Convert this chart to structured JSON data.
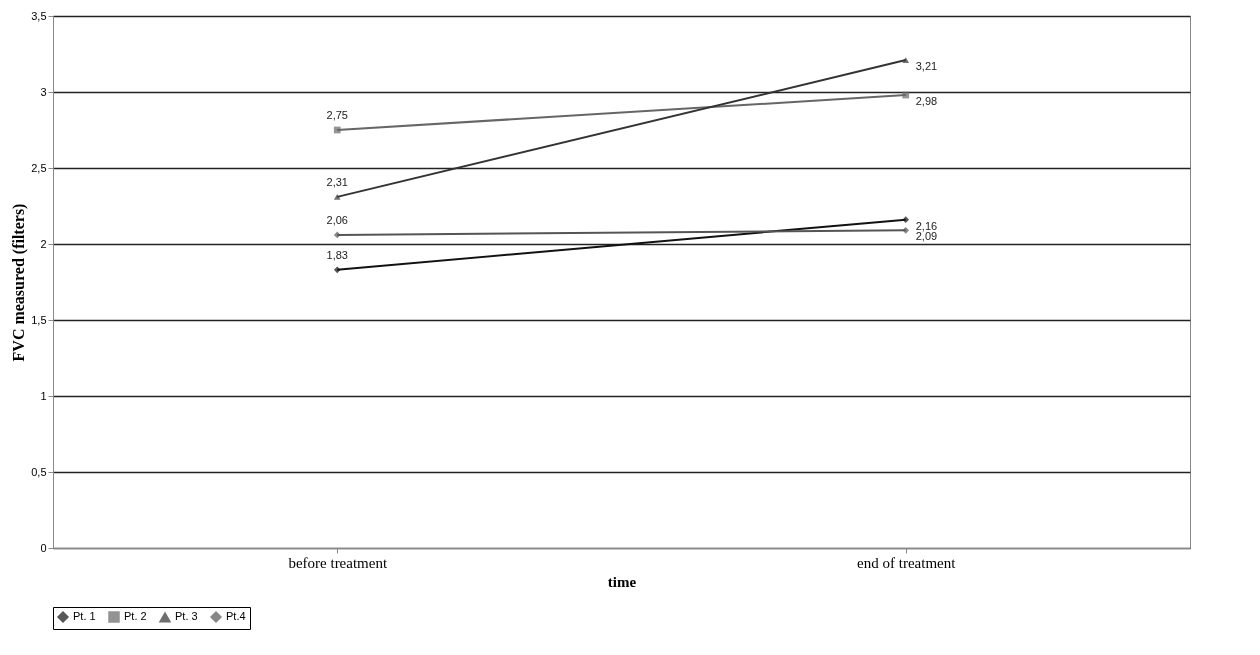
{
  "chart_data": {
    "type": "line",
    "xlabel": "time",
    "ylabel": "FVC measured (filters)",
    "categories": [
      "before treatment",
      "end of treatment"
    ],
    "ylim": [
      0,
      3.5
    ],
    "yticks": [
      0,
      {
        "value": 0.5,
        "label": "0,5"
      },
      1,
      {
        "value": 1.5,
        "label": "1,5"
      },
      2,
      {
        "value": 2.5,
        "label": "2,5"
      },
      3,
      {
        "value": 3.5,
        "label": "3,5"
      }
    ],
    "grid": "y",
    "legend": "bottom",
    "series": [
      {
        "name": "Pt. 1",
        "color": "#111111",
        "marker": "diamond",
        "values": [
          1.83,
          2.16
        ],
        "value_labels": [
          "1,83",
          "2,16"
        ]
      },
      {
        "name": "Pt. 2",
        "color": "#666666",
        "marker": "square",
        "values": [
          2.75,
          2.98
        ],
        "value_labels": [
          "2,75",
          "2,98"
        ]
      },
      {
        "name": "Pt. 3",
        "color": "#333333",
        "marker": "triangle",
        "values": [
          2.31,
          3.21
        ],
        "value_labels": [
          "2,31",
          "3,21"
        ]
      },
      {
        "name": "Pt.4",
        "color": "#555555",
        "marker": "diamond",
        "values": [
          2.06,
          2.09
        ],
        "value_labels": [
          "2,06",
          "2,09"
        ]
      }
    ]
  }
}
